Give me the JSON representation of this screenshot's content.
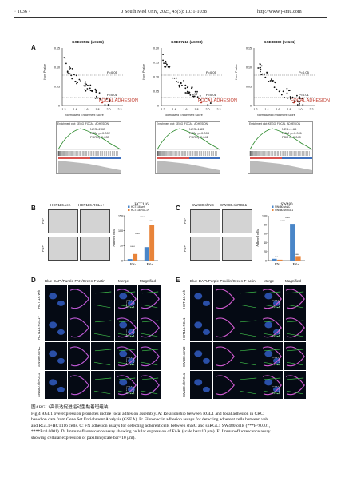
{
  "header": {
    "page_number": "1036",
    "journal": "J South Med Univ, 2025, 45(5): 1031-1038",
    "url": "http://www.j-smu.com"
  },
  "panel_a": {
    "label": "A",
    "datasets": [
      {
        "title": "GSE39582",
        "n": "(n=585)"
      },
      {
        "title": "GSE87211",
        "n": "(n=203)"
      },
      {
        "title": "GSE38880",
        "n": "(n=101)"
      }
    ],
    "ylabel": "Nom Pvalue",
    "xlabel": "Normalized Enrichment Score",
    "p005": "P=0.05",
    "p001": "P=0.01",
    "highlight": "FOCAL ADHESION",
    "y_ticks": [
      "0.15",
      "0.10",
      "0.05",
      "0"
    ],
    "y_ticks_2": [
      "0.20",
      "0.15",
      "0.10",
      "0.05",
      "0"
    ],
    "x_ticks": [
      "1.2",
      "1.4",
      "1.6",
      "1.8",
      "2.0",
      "2.2"
    ],
    "gsea_title": "Enrichment plot: KEGG_FOCAL_ADHESION",
    "gsea_stats": [
      {
        "nes": "NES=2.02",
        "nom": "NOM p=0.002",
        "fdr": "FDR q=0.033"
      },
      {
        "nes": "NES=1.83",
        "nom": "NOM p=0.008",
        "fdr": "FDR q=0.041"
      },
      {
        "nes": "NES=1.65",
        "nom": "NOM p=0.001",
        "fdr": "FDR q=0.040"
      }
    ]
  },
  "panel_b": {
    "label": "B",
    "col1": "HCT116.veh",
    "col2": "HCT116.RGL1+",
    "row1": "FN-",
    "row2": "FN+",
    "chart_title": "HCT116",
    "legend1": "HCT116.veh",
    "legend2": "HCT116.RGL1+",
    "ylabel": "Adhered cells",
    "stars": "****"
  },
  "panel_c": {
    "label": "C",
    "col1": "SW480.shNC",
    "col2": "SW480.shRGL1",
    "row1": "FN-",
    "row2": "FN+",
    "chart_title": "SW480",
    "legend1": "SW480.shNC",
    "legend2": "SW480.shRGL1",
    "ylabel": "Adhered cells",
    "stars_low": "***",
    "stars": "****"
  },
  "panel_d": {
    "label": "D",
    "header": "Blue-DAPI/Purple-FAK/Green-F-actin",
    "merge": "Merge",
    "magnified": "Magnified",
    "rows": [
      "HCT116.veh",
      "HCT116.RGL1+",
      "SW480.shNC",
      "SW480.shRGL1"
    ]
  },
  "panel_e": {
    "label": "E",
    "header": "Blue-DAPI/Purple-Paxillin/Green-F-actin",
    "merge": "Merge",
    "magnified": "Magnified",
    "rows": [
      "HCT116.veh",
      "HCT116.RGL1+",
      "SW480.shNC",
      "SW480.shRGL1"
    ]
  },
  "chart_data": [
    {
      "type": "bar",
      "title": "HCT116",
      "ylabel": "Adhered cells",
      "categories": [
        "FN-",
        "FN+"
      ],
      "y_ticks": [
        "0",
        "50",
        "100",
        "150"
      ],
      "series": [
        {
          "name": "HCT116.veh",
          "values": [
            5,
            45
          ]
        },
        {
          "name": "HCT116.RGL1+",
          "values": [
            22,
            118
          ]
        }
      ],
      "ylim": [
        0,
        150
      ],
      "colors": [
        "#4a86c8",
        "#e8843a"
      ]
    },
    {
      "type": "bar",
      "title": "SW480",
      "ylabel": "Adhered cells",
      "categories": [
        "FN-",
        "FN+"
      ],
      "y_ticks": [
        "0",
        "20",
        "40",
        "60",
        "80",
        "100"
      ],
      "series": [
        {
          "name": "SW480.shNC",
          "values": [
            4,
            82
          ]
        },
        {
          "name": "SW480.shRGL1",
          "values": [
            2,
            10
          ]
        }
      ],
      "ylim": [
        0,
        100
      ],
      "colors": [
        "#4a86c8",
        "#e8843a"
      ]
    }
  ],
  "caption": {
    "zh": "图4 RGL1高表达促进运动型黏着斑组装",
    "en_lines": [
      "Fig.4 RGL1 overexpression promotes motile focal adhesion assembly. A: Relationship between RGL1 and focal adhesion in CRC",
      "based on data from Gene Set Enrichment Analysis (GSEA). B: Fibronectin adhesion assays for detecting adherent cells between veh",
      "and RGL1+HCT116 cells. C: FN adhesion assays for detecting adherent cells between shNC and shRGL1 SW480 cells (***P<0.001,",
      "****P<0.0001). D: Immunofluorescence assay showing cellular expression of FAK (scale bar=10 μm). E: Immunofluorescence assay",
      "showing cellular expression of paxillin (scale bar=10 μm)."
    ]
  }
}
